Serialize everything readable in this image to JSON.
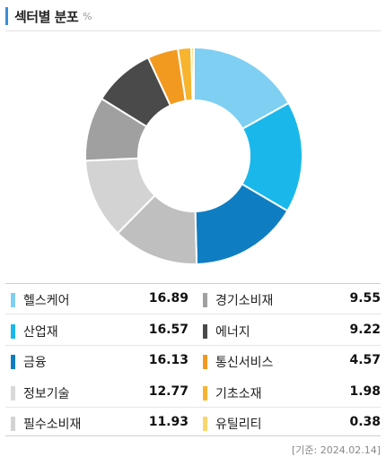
{
  "header": {
    "title": "섹터별 분포",
    "unit": "%"
  },
  "footer": {
    "date_note": "[기준: 2024.02.14]"
  },
  "chart_data": {
    "type": "pie",
    "donut": true,
    "categories": [
      "헬스케어",
      "산업재",
      "금융",
      "정보기술",
      "필수소비재",
      "경기소비재",
      "에너지",
      "통신서비스",
      "기초소재",
      "유틸리티"
    ],
    "values": [
      16.89,
      16.57,
      16.13,
      12.77,
      11.93,
      9.55,
      9.22,
      4.57,
      1.98,
      0.38
    ],
    "colors": [
      "#7ecff2",
      "#1ab8ea",
      "#0f7dc2",
      "#bfbfbf",
      "#d3d3d3",
      "#a0a0a0",
      "#4a4a4a",
      "#f29a20",
      "#f7b42e",
      "#fbd66a"
    ],
    "start_angle_deg": 0,
    "direction": "clockwise",
    "legend": [
      {
        "left": {
          "name": "헬스케어",
          "value": "16.89",
          "color": "#7ecff2"
        },
        "right": {
          "name": "경기소비재",
          "value": "9.55",
          "color": "#a0a0a0"
        }
      },
      {
        "left": {
          "name": "산업재",
          "value": "16.57",
          "color": "#1ab8ea"
        },
        "right": {
          "name": "에너지",
          "value": "9.22",
          "color": "#4a4a4a"
        }
      },
      {
        "left": {
          "name": "금융",
          "value": "16.13",
          "color": "#0f7dc2"
        },
        "right": {
          "name": "통신서비스",
          "value": "4.57",
          "color": "#f29a20"
        }
      },
      {
        "left": {
          "name": "정보기술",
          "value": "12.77",
          "color": "#d9d9d9"
        },
        "right": {
          "name": "기초소재",
          "value": "1.98",
          "color": "#f7b42e"
        }
      },
      {
        "left": {
          "name": "필수소비재",
          "value": "11.93",
          "color": "#d3d3d3"
        },
        "right": {
          "name": "유틸리티",
          "value": "0.38",
          "color": "#fbd66a"
        }
      }
    ]
  }
}
